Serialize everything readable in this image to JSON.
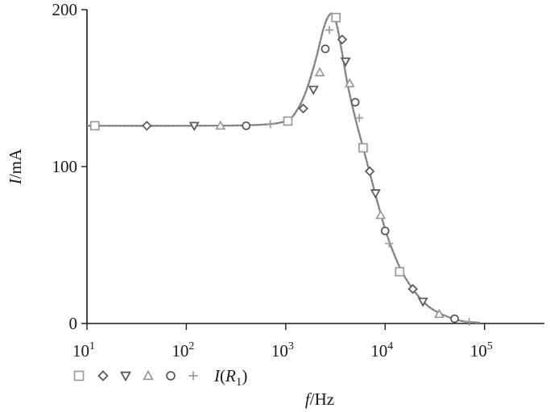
{
  "chart_data": {
    "type": "line",
    "x_scale": "log",
    "xlim": [
      10,
      400000
    ],
    "ylim": [
      0,
      200
    ],
    "x_ticks": [
      {
        "value": 10,
        "base": "10",
        "exp": "1"
      },
      {
        "value": 100,
        "base": "10",
        "exp": "2"
      },
      {
        "value": 1000,
        "base": "10",
        "exp": "3"
      },
      {
        "value": 10000,
        "base": "10",
        "exp": "4"
      },
      {
        "value": 100000,
        "base": "10",
        "exp": "5"
      }
    ],
    "y_ticks": [
      {
        "value": 0,
        "label": "0"
      },
      {
        "value": 100,
        "label": "100"
      },
      {
        "value": 200,
        "label": "200"
      }
    ],
    "xlabel": {
      "italic": "f",
      "unit": "/Hz"
    },
    "ylabel": {
      "italic": "I",
      "unit": "/mA"
    },
    "grid": false,
    "legend": {
      "placement": "bottom-left",
      "markers": [
        "square",
        "diamond",
        "triangle-down",
        "triangle-up",
        "circle",
        "plus"
      ],
      "label": {
        "italic": "I",
        "paren_open": "(",
        "var": "R",
        "sub": "1",
        "paren_close": ")"
      }
    },
    "colors": {
      "axis": "#1a1a1a",
      "curve": "#909090",
      "marker_light": "#9a9a9a",
      "marker_dark": "#555555"
    },
    "series": [
      {
        "name": "I(R1)",
        "style": "line",
        "x": [
          10,
          100,
          500,
          1000,
          1300,
          1600,
          2000,
          2400,
          2700,
          3000,
          3300,
          3700,
          4200,
          5000,
          6000,
          7000,
          8000,
          10000,
          12000,
          15000,
          20000,
          25000,
          30000,
          40000,
          55000,
          70000,
          90000
        ],
        "y": [
          126,
          126,
          126.5,
          129,
          136,
          148,
          168,
          188,
          196,
          197,
          189,
          172,
          152,
          131,
          112,
          96,
          82,
          60,
          46,
          32,
          20,
          13,
          9,
          5,
          2,
          1,
          0.5
        ]
      }
    ],
    "marker_points": [
      {
        "shape": "square",
        "x": 12,
        "y": 126
      },
      {
        "shape": "diamond",
        "x": 40,
        "y": 126
      },
      {
        "shape": "triangle-down",
        "x": 120,
        "y": 126
      },
      {
        "shape": "triangle-up",
        "x": 220,
        "y": 126
      },
      {
        "shape": "circle",
        "x": 400,
        "y": 126
      },
      {
        "shape": "plus",
        "x": 700,
        "y": 127
      },
      {
        "shape": "square",
        "x": 1050,
        "y": 129
      },
      {
        "shape": "diamond",
        "x": 1500,
        "y": 137
      },
      {
        "shape": "triangle-down",
        "x": 1900,
        "y": 149
      },
      {
        "shape": "triangle-up",
        "x": 2200,
        "y": 160
      },
      {
        "shape": "circle",
        "x": 2500,
        "y": 175
      },
      {
        "shape": "plus",
        "x": 2750,
        "y": 187
      },
      {
        "shape": "square",
        "x": 3200,
        "y": 195
      },
      {
        "shape": "diamond",
        "x": 3700,
        "y": 181
      },
      {
        "shape": "triangle-down",
        "x": 4000,
        "y": 167
      },
      {
        "shape": "triangle-up",
        "x": 4400,
        "y": 153
      },
      {
        "shape": "circle",
        "x": 5000,
        "y": 141
      },
      {
        "shape": "plus",
        "x": 5500,
        "y": 131
      },
      {
        "shape": "square",
        "x": 6000,
        "y": 112
      },
      {
        "shape": "diamond",
        "x": 7000,
        "y": 97
      },
      {
        "shape": "triangle-down",
        "x": 8000,
        "y": 83
      },
      {
        "shape": "triangle-up",
        "x": 9000,
        "y": 69
      },
      {
        "shape": "circle",
        "x": 10000,
        "y": 59
      },
      {
        "shape": "plus",
        "x": 11000,
        "y": 51
      },
      {
        "shape": "square",
        "x": 14000,
        "y": 33
      },
      {
        "shape": "diamond",
        "x": 19000,
        "y": 22
      },
      {
        "shape": "triangle-down",
        "x": 24000,
        "y": 14
      },
      {
        "shape": "triangle-up",
        "x": 35000,
        "y": 6
      },
      {
        "shape": "circle",
        "x": 50000,
        "y": 3
      },
      {
        "shape": "plus",
        "x": 70000,
        "y": 1
      }
    ]
  }
}
